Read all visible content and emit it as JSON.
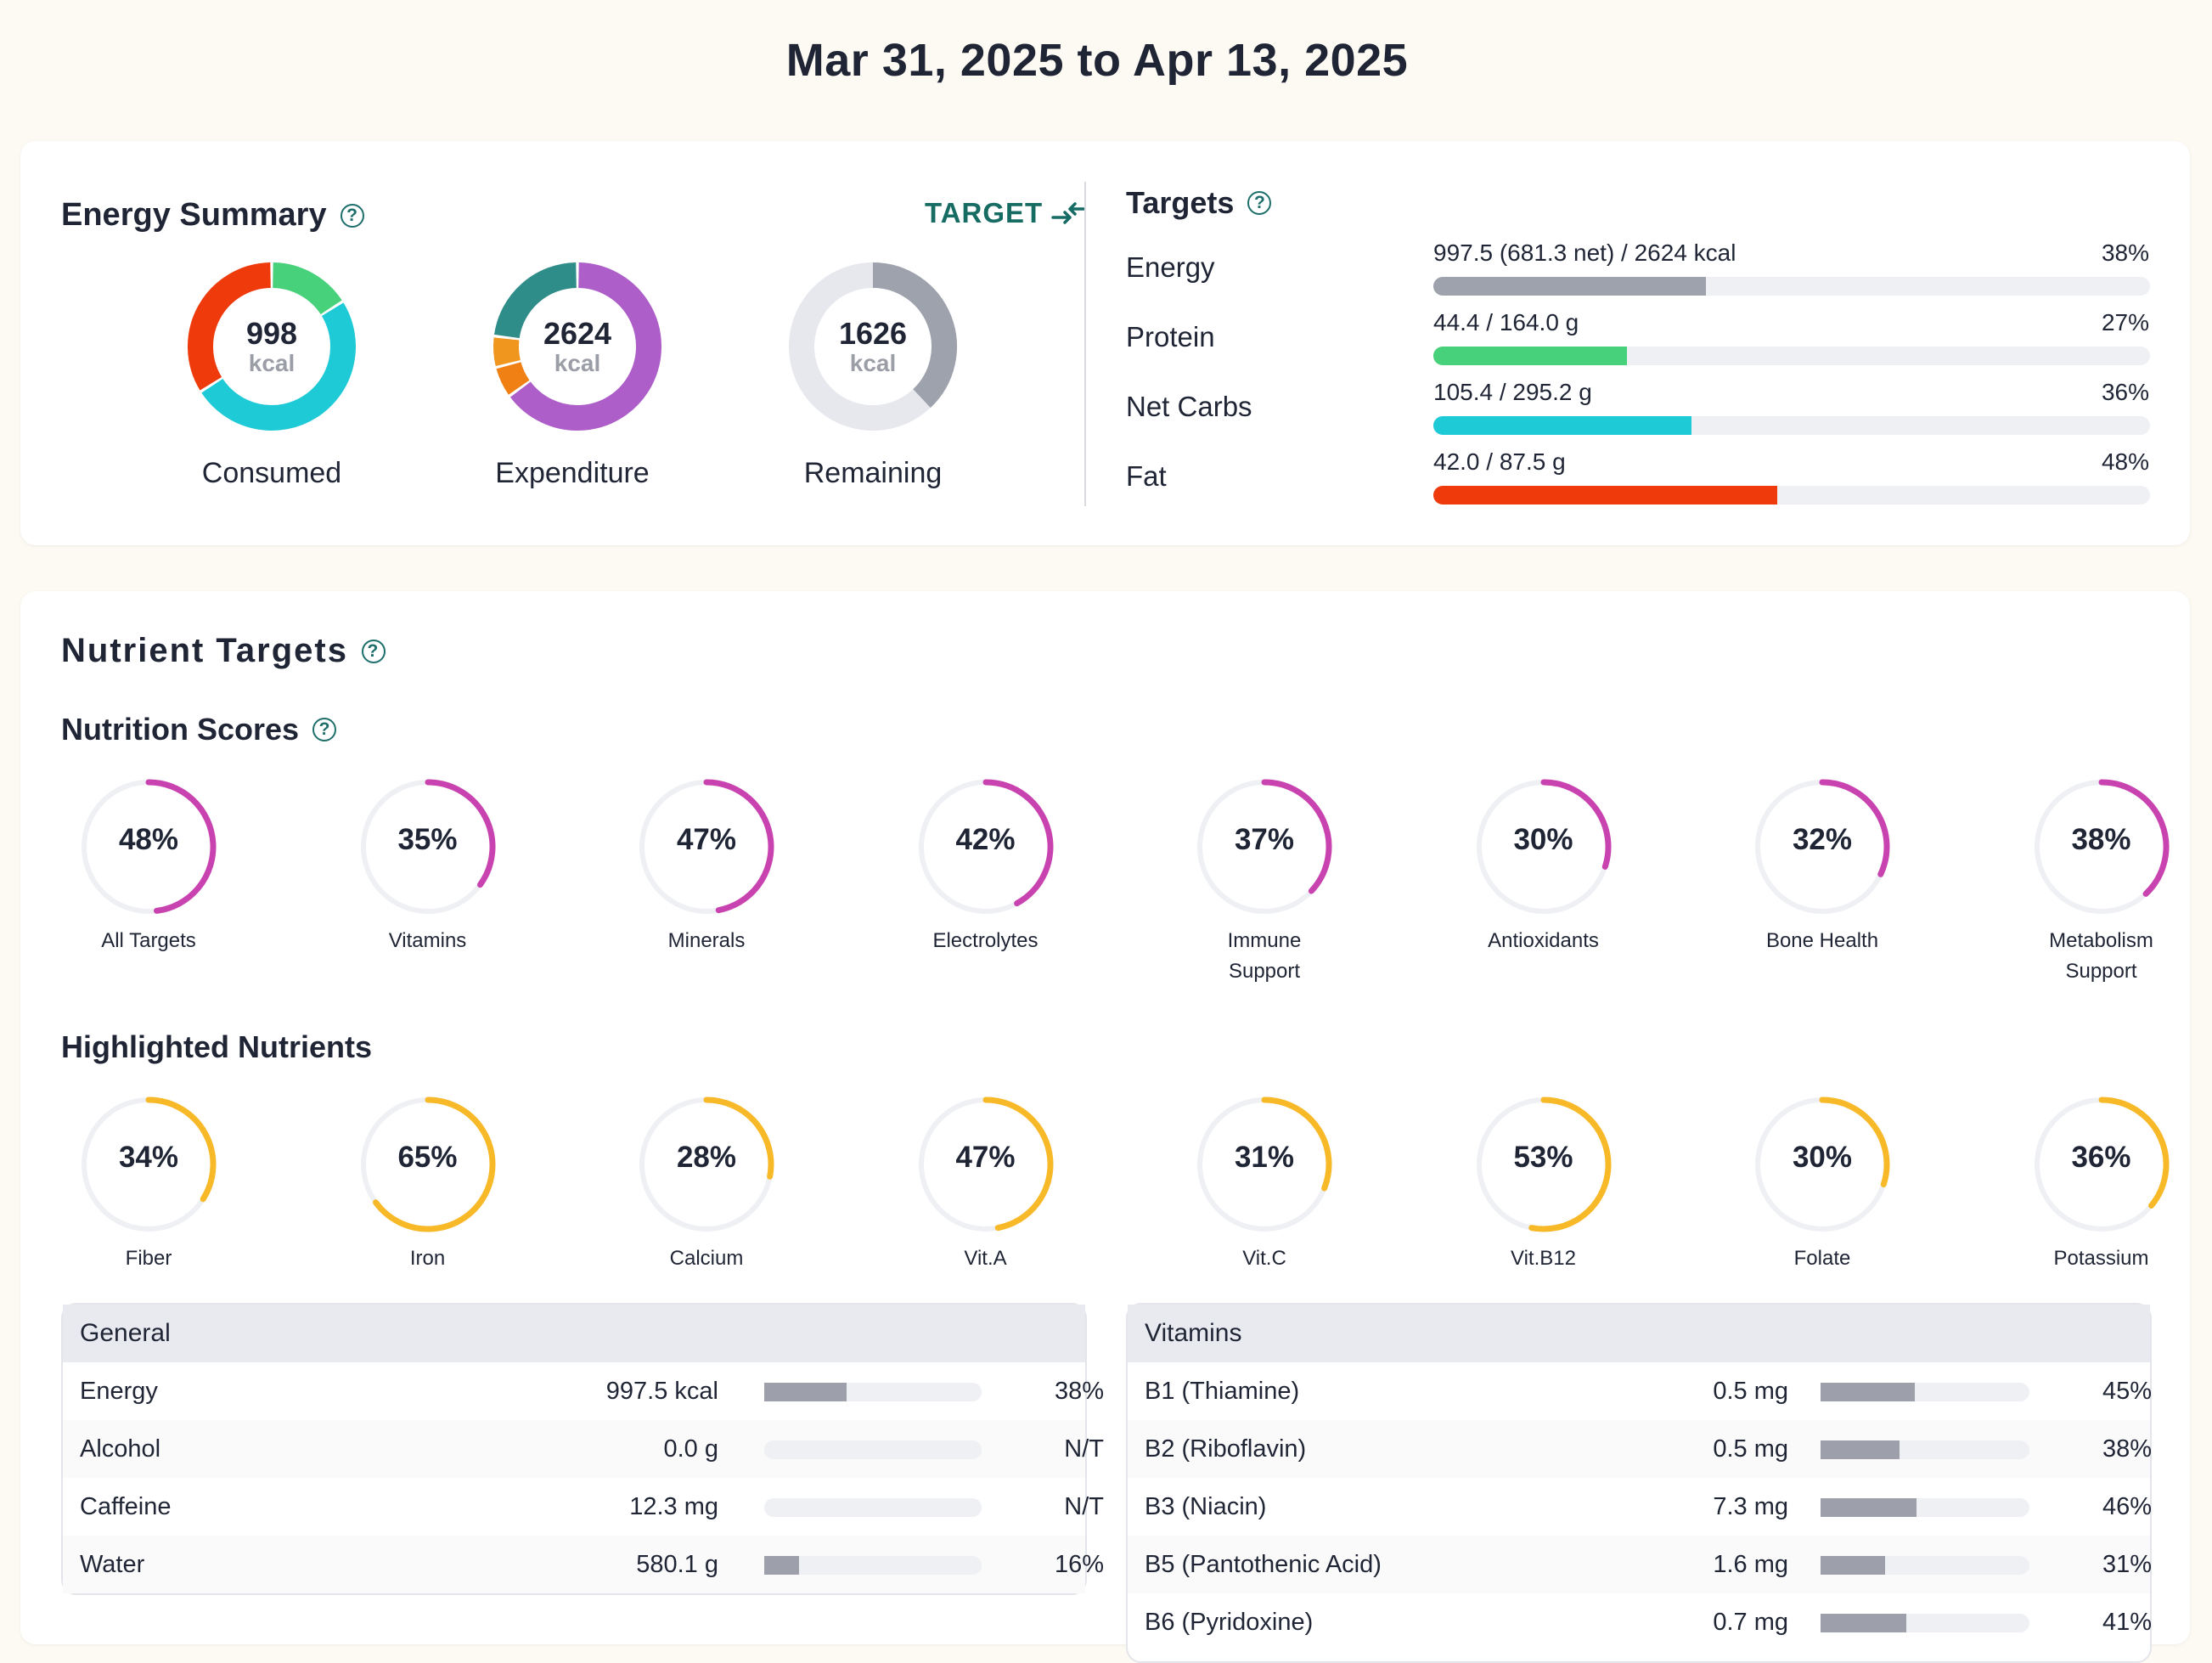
{
  "header": {
    "date_range": "Mar 31, 2025 to Apr 13, 2025"
  },
  "energy_summary": {
    "title": "Energy Summary",
    "target_toggle": "TARGET",
    "donuts": [
      {
        "value": "998",
        "unit": "kcal",
        "caption": "Consumed",
        "segments": [
          {
            "color": "#46d17a",
            "fraction": 0.16
          },
          {
            "color": "#1ecad6",
            "fraction": 0.5
          },
          {
            "color": "#ef3b0b",
            "fraction": 0.34
          }
        ]
      },
      {
        "value": "2624",
        "unit": "kcal",
        "caption": "Expenditure",
        "segments": [
          {
            "color": "#ad5ec9",
            "fraction": 0.65
          },
          {
            "color": "#f07f14",
            "fraction": 0.06
          },
          {
            "color": "#f0951e",
            "fraction": 0.06
          },
          {
            "color": "#2e8d89",
            "fraction": 0.23
          }
        ]
      },
      {
        "value": "1626",
        "unit": "kcal",
        "caption": "Remaining",
        "segments": [
          {
            "color": "#9ea2ad",
            "fraction": 0.38
          },
          {
            "color": "#e6e8ee",
            "fraction": 0.62
          }
        ]
      }
    ]
  },
  "targets": {
    "title": "Targets",
    "rows": [
      {
        "label": "Energy",
        "value": "997.5 (681.3 net) / 2624 kcal",
        "percent_label": "38%",
        "fraction": 0.38,
        "color": "#9ea2ad"
      },
      {
        "label": "Protein",
        "value": "44.4 / 164.0 g",
        "percent_label": "27%",
        "fraction": 0.27,
        "color": "#46d17a"
      },
      {
        "label": "Net Carbs",
        "value": "105.4 / 295.2 g",
        "percent_label": "36%",
        "fraction": 0.36,
        "color": "#1ecad6"
      },
      {
        "label": "Fat",
        "value": "42.0 / 87.5 g",
        "percent_label": "48%",
        "fraction": 0.48,
        "color": "#ef3b0b"
      }
    ]
  },
  "nutrient_targets": {
    "title": "Nutrient Targets",
    "scores_title": "Nutrition Scores",
    "scores_color": "#c943b0",
    "scores": [
      {
        "value": "48%",
        "fraction": 0.48,
        "label": "All Targets"
      },
      {
        "value": "35%",
        "fraction": 0.35,
        "label": "Vitamins"
      },
      {
        "value": "47%",
        "fraction": 0.47,
        "label": "Minerals"
      },
      {
        "value": "42%",
        "fraction": 0.42,
        "label": "Electrolytes"
      },
      {
        "value": "37%",
        "fraction": 0.37,
        "label": "Immune Support"
      },
      {
        "value": "30%",
        "fraction": 0.3,
        "label": "Antioxidants"
      },
      {
        "value": "32%",
        "fraction": 0.32,
        "label": "Bone Health"
      },
      {
        "value": "38%",
        "fraction": 0.38,
        "label": "Metabolism Support"
      }
    ],
    "highlighted_title": "Highlighted Nutrients",
    "highlighted_color": "#f7b928",
    "highlighted": [
      {
        "value": "34%",
        "fraction": 0.34,
        "label": "Fiber"
      },
      {
        "value": "65%",
        "fraction": 0.65,
        "label": "Iron"
      },
      {
        "value": "28%",
        "fraction": 0.28,
        "label": "Calcium"
      },
      {
        "value": "47%",
        "fraction": 0.47,
        "label": "Vit.A"
      },
      {
        "value": "31%",
        "fraction": 0.31,
        "label": "Vit.C"
      },
      {
        "value": "53%",
        "fraction": 0.53,
        "label": "Vit.B12"
      },
      {
        "value": "30%",
        "fraction": 0.3,
        "label": "Folate"
      },
      {
        "value": "36%",
        "fraction": 0.36,
        "label": "Potassium"
      }
    ]
  },
  "tables": {
    "general": {
      "title": "General",
      "rows": [
        {
          "name": "Energy",
          "amount": "997.5 kcal",
          "percent": "38%",
          "fraction": 0.38
        },
        {
          "name": "Alcohol",
          "amount": "0.0 g",
          "percent": "N/T",
          "fraction": 0
        },
        {
          "name": "Caffeine",
          "amount": "12.3 mg",
          "percent": "N/T",
          "fraction": 0
        },
        {
          "name": "Water",
          "amount": "580.1 g",
          "percent": "16%",
          "fraction": 0.16
        }
      ]
    },
    "vitamins": {
      "title": "Vitamins",
      "rows": [
        {
          "name": "B1 (Thiamine)",
          "amount": "0.5 mg",
          "percent": "45%",
          "fraction": 0.45
        },
        {
          "name": "B2 (Riboflavin)",
          "amount": "0.5 mg",
          "percent": "38%",
          "fraction": 0.38
        },
        {
          "name": "B3 (Niacin)",
          "amount": "7.3 mg",
          "percent": "46%",
          "fraction": 0.46
        },
        {
          "name": "B5 (Pantothenic Acid)",
          "amount": "1.6 mg",
          "percent": "31%",
          "fraction": 0.31
        },
        {
          "name": "B6 (Pyridoxine)",
          "amount": "0.7 mg",
          "percent": "41%",
          "fraction": 0.41
        }
      ]
    }
  }
}
